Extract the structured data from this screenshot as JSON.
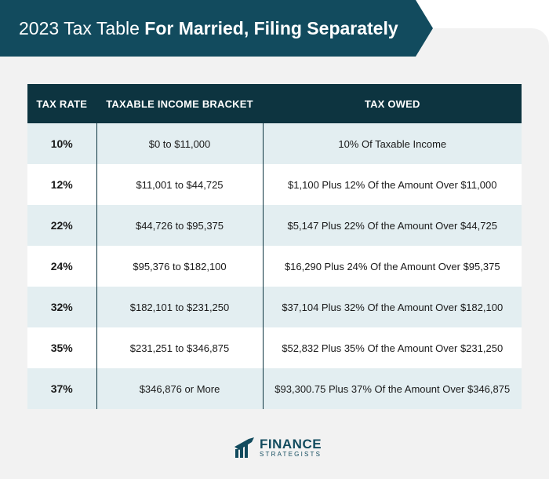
{
  "header": {
    "title_light": "2023 Tax Table",
    "title_bold": "For Married, Filing Separately"
  },
  "table": {
    "columns": [
      "TAX RATE",
      "TAXABLE INCOME BRACKET",
      "TAX OWED"
    ],
    "rows": [
      {
        "rate": "10%",
        "bracket": "$0 to $11,000",
        "owed": "10% Of Taxable Income"
      },
      {
        "rate": "12%",
        "bracket": "$11,001 to $44,725",
        "owed": "$1,100 Plus 12% Of the Amount Over $11,000"
      },
      {
        "rate": "22%",
        "bracket": "$44,726 to $95,375",
        "owed": "$5,147 Plus 22% Of the Amount Over $44,725"
      },
      {
        "rate": "24%",
        "bracket": "$95,376 to $182,100",
        "owed": "$16,290 Plus 24% Of the Amount Over $95,375"
      },
      {
        "rate": "32%",
        "bracket": "$182,101 to $231,250",
        "owed": "$37,104 Plus 32% Of the Amount Over $182,100"
      },
      {
        "rate": "35%",
        "bracket": "$231,251 to $346,875",
        "owed": "$52,832 Plus 35% Of the Amount Over $231,250"
      },
      {
        "rate": "37%",
        "bracket": "$346,876 or More",
        "owed": "$93,300.75 Plus 37% Of the Amount Over $346,875"
      }
    ]
  },
  "logo": {
    "line1": "FINANCE",
    "line2": "STRATEGISTS",
    "icon": "finance-strategists-logo-icon",
    "color": "#124b5e"
  },
  "colors": {
    "banner": "#124b5e",
    "table_header": "#0d3440",
    "row_tint": "#e3eef1",
    "background": "#f2f2f2"
  }
}
